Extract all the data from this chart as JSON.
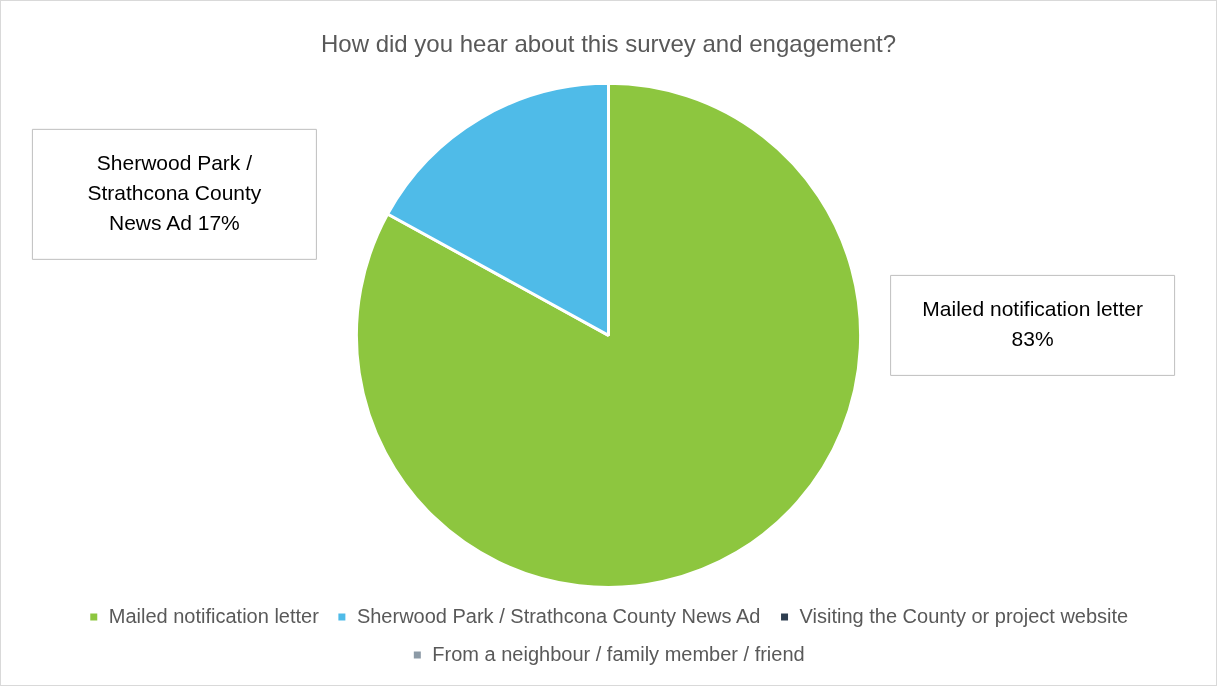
{
  "chart_data": {
    "type": "pie",
    "title": "How did you hear about this survey and engagement?",
    "categories": [
      "Mailed notification letter",
      "Sherwood Park / Strathcona County News Ad",
      "Visiting the County or project website",
      "From a neighbour / family member / friend"
    ],
    "values": [
      83,
      17,
      0,
      0
    ],
    "value_labels": [
      "83%",
      "17%",
      null,
      null
    ],
    "colors": [
      "#8dc63f",
      "#4fbbe8",
      "#2e3e50",
      "#8c9aa6"
    ],
    "legend": "bottom"
  }
}
